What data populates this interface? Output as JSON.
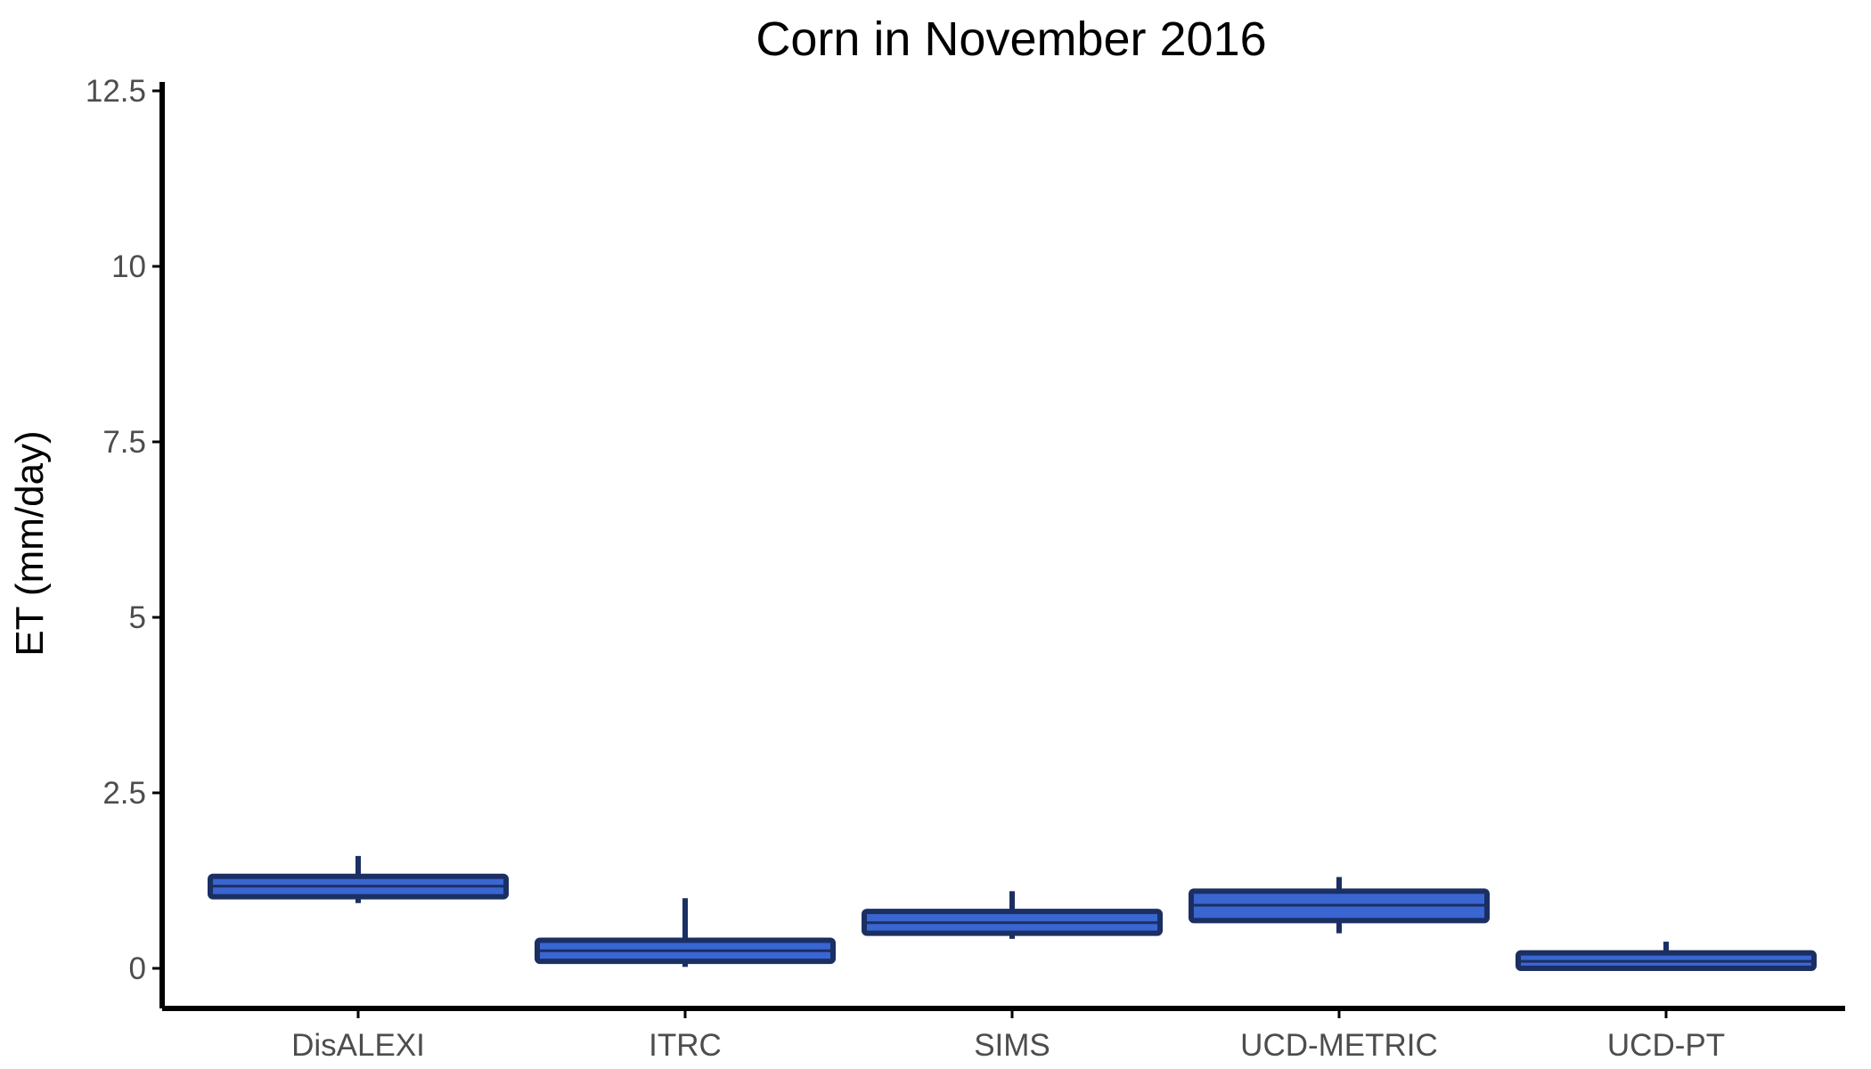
{
  "chart_data": {
    "type": "boxplot",
    "title": "Corn in November 2016",
    "xlabel": "",
    "ylabel": "ET (mm/day)",
    "ylim": [
      -0.55,
      12.6
    ],
    "yticks": [
      0,
      2.5,
      5,
      7.5,
      10,
      12.5
    ],
    "ytick_labels": [
      "0",
      "2.5",
      "5",
      "7.5",
      "10",
      "12.5"
    ],
    "categories": [
      "DisALEXI",
      "ITRC",
      "SIMS",
      "UCD-METRIC",
      "UCD-PT"
    ],
    "boxes": [
      {
        "category": "DisALEXI",
        "whisker_low": 0.93,
        "q1": 1.02,
        "median": 1.17,
        "q3": 1.31,
        "whisker_high": 1.6
      },
      {
        "category": "ITRC",
        "whisker_low": 0.02,
        "q1": 0.1,
        "median": 0.25,
        "q3": 0.4,
        "whisker_high": 1.0
      },
      {
        "category": "SIMS",
        "whisker_low": 0.42,
        "q1": 0.5,
        "median": 0.65,
        "q3": 0.81,
        "whisker_high": 1.1
      },
      {
        "category": "UCD-METRIC",
        "whisker_low": 0.5,
        "q1": 0.68,
        "median": 0.9,
        "q3": 1.1,
        "whisker_high": 1.3
      },
      {
        "category": "UCD-PT",
        "whisker_low": 0.0,
        "q1": 0.0,
        "median": 0.1,
        "q3": 0.22,
        "whisker_high": 0.38
      }
    ],
    "grid": false,
    "legend": "none",
    "colors": {
      "box_fill": "#3a66d1",
      "box_stroke": "#1b2f63",
      "axis": "#000000",
      "tick_label": "#4d4d4d"
    }
  }
}
